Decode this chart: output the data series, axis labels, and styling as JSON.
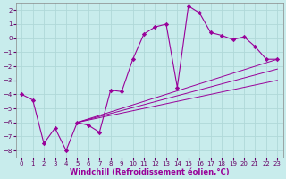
{
  "xlabel": "Windchill (Refroidissement éolien,°C)",
  "background_color": "#c8ecec",
  "grid_color": "#b0d8d8",
  "line_color": "#990099",
  "xlim": [
    -0.5,
    23.5
  ],
  "ylim": [
    -8.5,
    2.5
  ],
  "yticks": [
    2,
    1,
    0,
    -1,
    -2,
    -3,
    -4,
    -5,
    -6,
    -7,
    -8
  ],
  "xticks": [
    0,
    1,
    2,
    3,
    4,
    5,
    6,
    7,
    8,
    9,
    10,
    11,
    12,
    13,
    14,
    15,
    16,
    17,
    18,
    19,
    20,
    21,
    22,
    23
  ],
  "main_x": [
    0,
    1,
    2,
    3,
    4,
    5,
    6,
    7,
    8,
    9,
    10,
    11,
    12,
    13,
    14,
    15,
    16,
    17,
    18,
    19,
    20,
    21,
    22,
    23
  ],
  "main_y": [
    -4.0,
    -4.4,
    -7.5,
    -6.4,
    -8.0,
    -6.0,
    -6.2,
    -6.7,
    -3.7,
    -3.8,
    -1.5,
    0.3,
    0.8,
    1.0,
    -3.5,
    2.3,
    1.8,
    0.4,
    0.2,
    -0.1,
    0.1,
    -0.6,
    -1.5,
    -1.5
  ],
  "line2_x": [
    5,
    23
  ],
  "line2_y": [
    -6.0,
    -1.5
  ],
  "line3_x": [
    5,
    23
  ],
  "line3_y": [
    -6.0,
    -2.2
  ],
  "line4_x": [
    5,
    23
  ],
  "line4_y": [
    -6.0,
    -3.0
  ],
  "tick_fontsize": 5,
  "xlabel_fontsize": 6
}
